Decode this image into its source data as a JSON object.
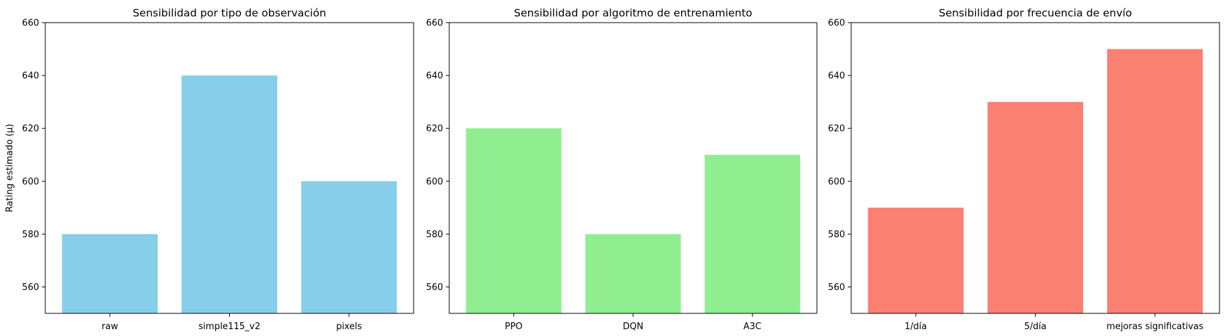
{
  "chart_data": [
    {
      "type": "bar",
      "title": "Sensibilidad por tipo de observación",
      "ylabel": "Rating estimado (μ)",
      "xlabel": "",
      "categories": [
        "raw",
        "simple115_v2",
        "pixels"
      ],
      "values": [
        580,
        640,
        600
      ],
      "color": "#87CEEB",
      "ylim": [
        550,
        660
      ],
      "yticks": [
        560,
        580,
        600,
        620,
        640,
        660
      ],
      "grid": false
    },
    {
      "type": "bar",
      "title": "Sensibilidad por algoritmo de entrenamiento",
      "ylabel": "",
      "xlabel": "",
      "categories": [
        "PPO",
        "DQN",
        "A3C"
      ],
      "values": [
        620,
        580,
        610
      ],
      "color": "#90EE90",
      "ylim": [
        550,
        660
      ],
      "yticks": [
        560,
        580,
        600,
        620,
        640,
        660
      ],
      "grid": false
    },
    {
      "type": "bar",
      "title": "Sensibilidad por frecuencia de envío",
      "ylabel": "",
      "xlabel": "",
      "categories": [
        "1/día",
        "5/día",
        "mejoras significativas"
      ],
      "values": [
        590,
        630,
        650
      ],
      "color": "#FA8072",
      "ylim": [
        550,
        660
      ],
      "yticks": [
        560,
        580,
        600,
        620,
        640,
        660
      ],
      "grid": false
    }
  ]
}
